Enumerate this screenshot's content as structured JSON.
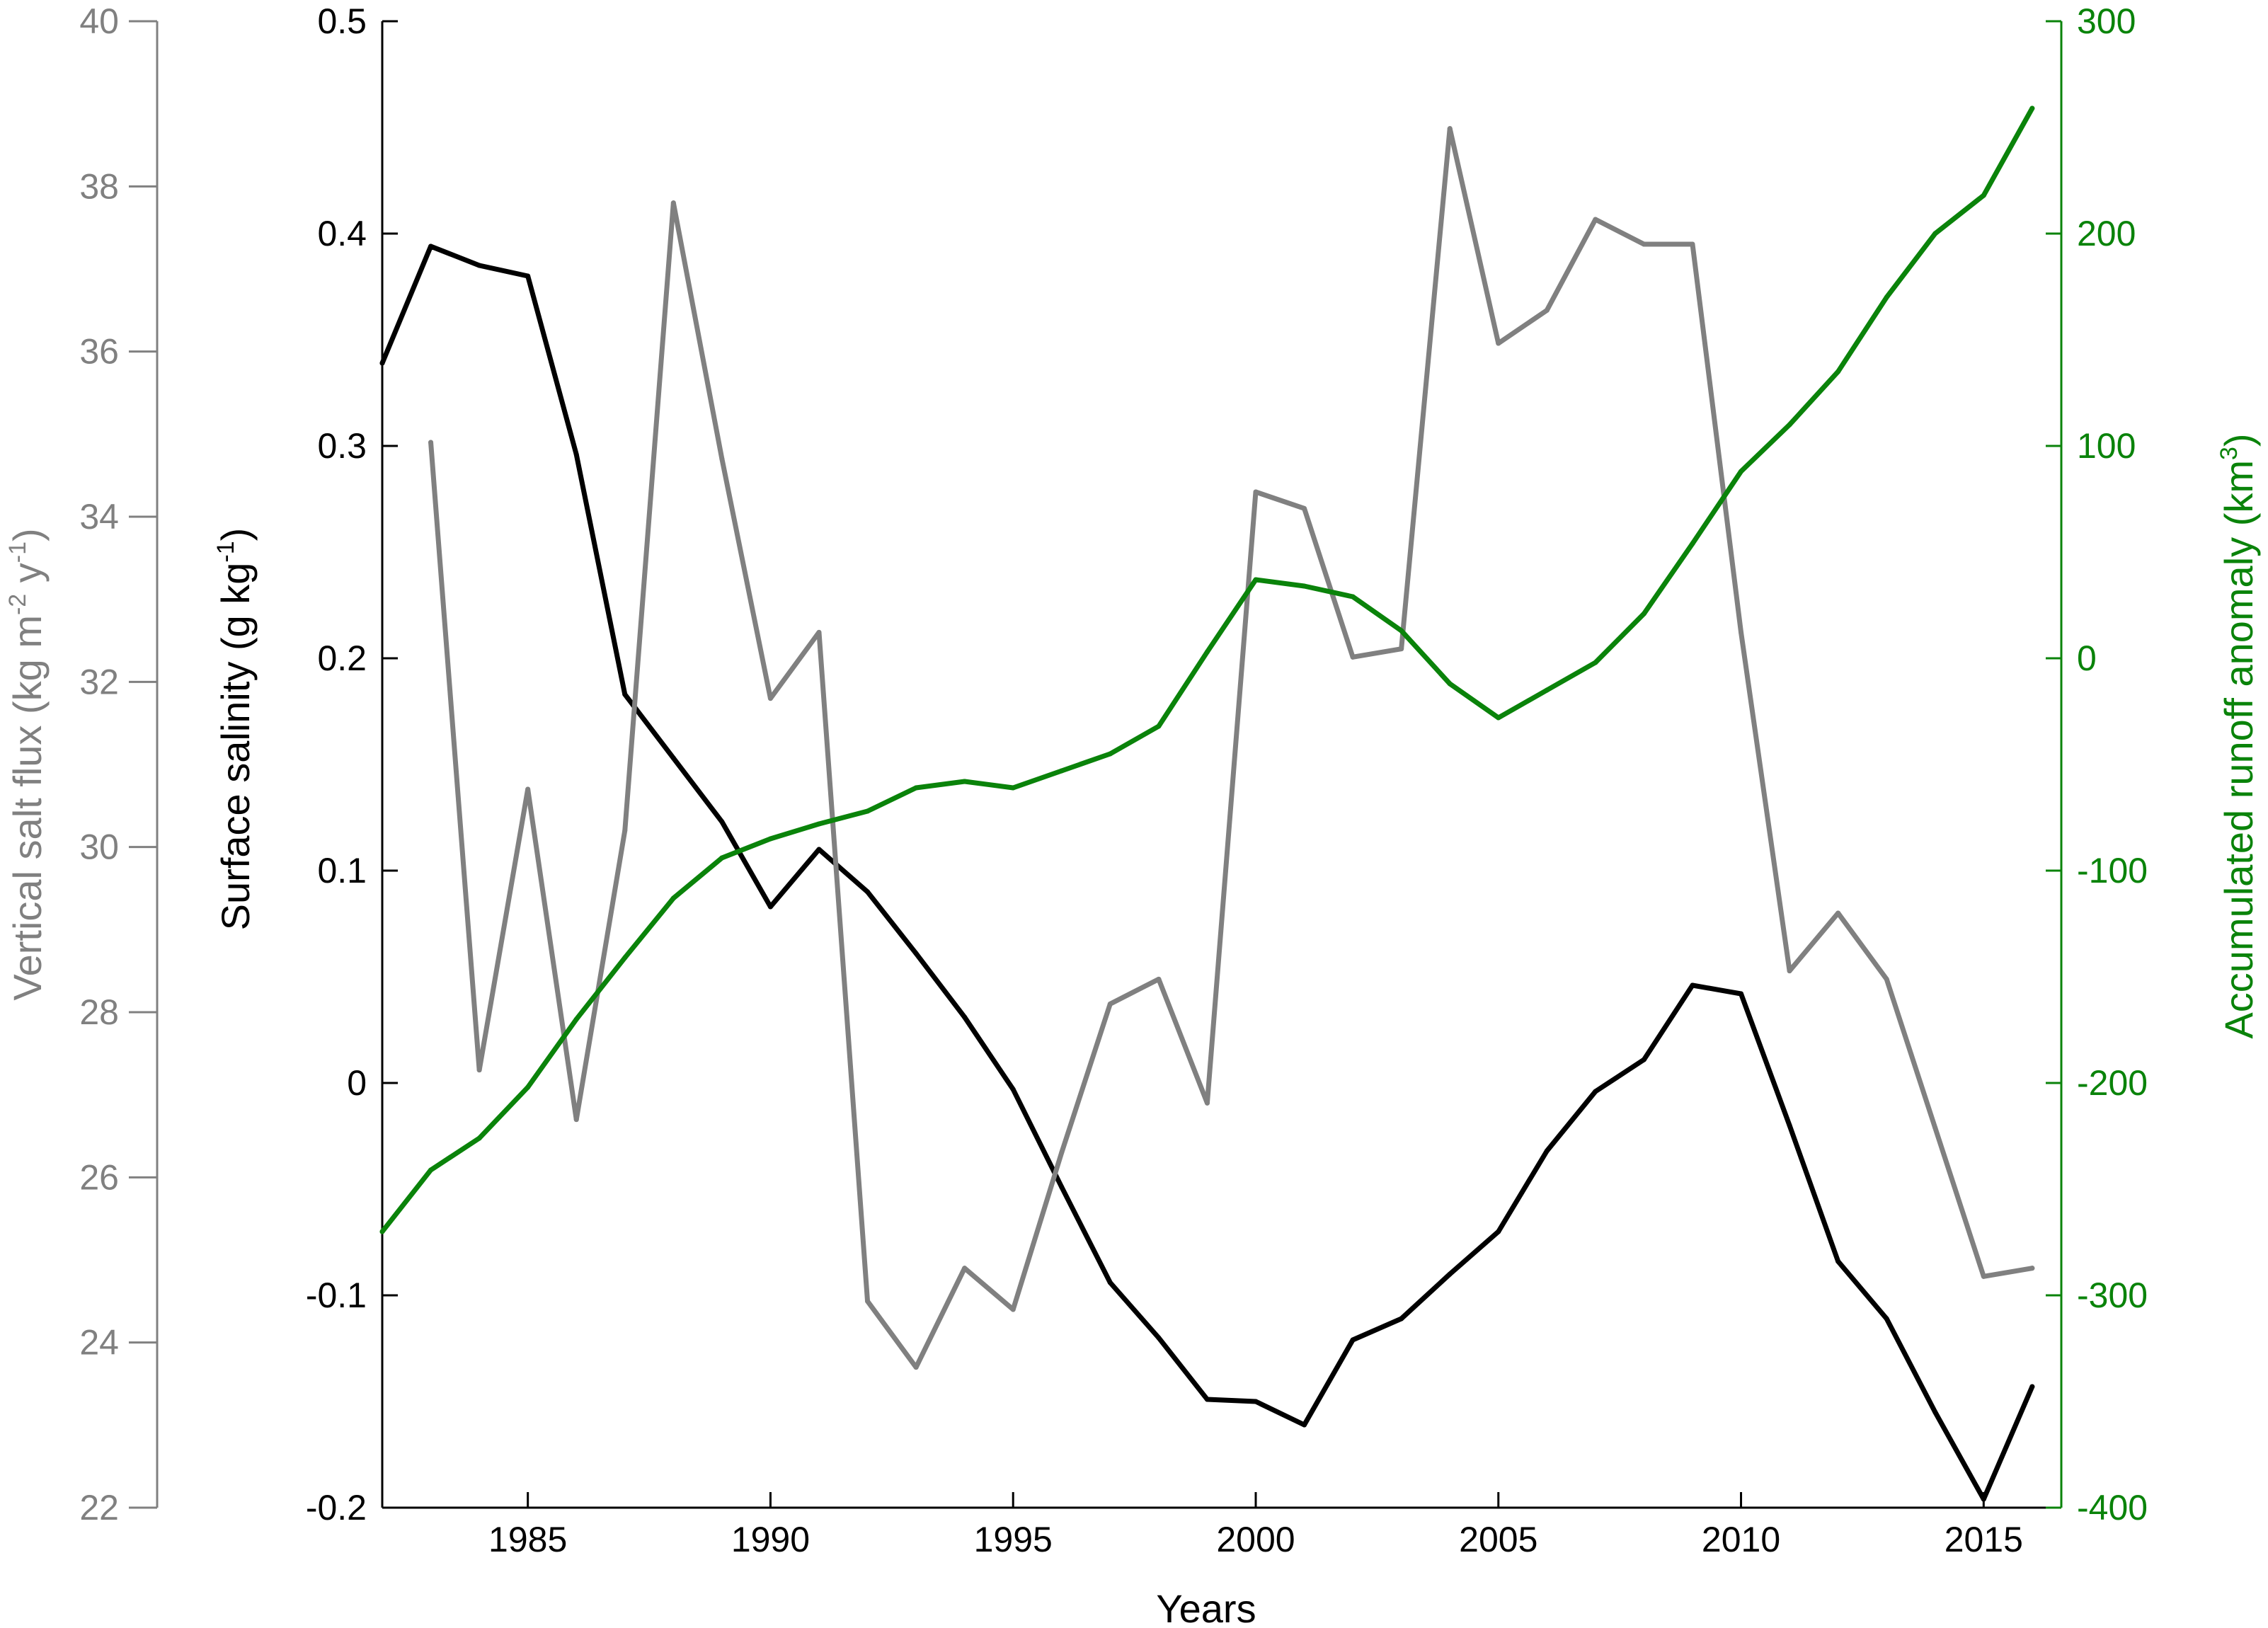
{
  "chart_data": {
    "type": "line",
    "x_axis": {
      "label": "Years",
      "range": [
        1982,
        2016.6
      ],
      "ticks": [
        1985,
        1990,
        1995,
        2000,
        2005,
        2010,
        2015
      ],
      "tick_labels": [
        "1985",
        "1990",
        "1995",
        "2000",
        "2005",
        "2010",
        "2015"
      ]
    },
    "y_axes": [
      {
        "id": "flux",
        "side": "far-left",
        "label_parts": [
          "Vertical salt flux (kg m",
          "-2",
          " y",
          "-1",
          ")"
        ],
        "range": [
          22,
          40
        ],
        "ticks": [
          22,
          24,
          26,
          28,
          30,
          32,
          34,
          36,
          38,
          40
        ],
        "tick_labels": [
          "22",
          "24",
          "26",
          "28",
          "30",
          "32",
          "34",
          "36",
          "38",
          "40"
        ],
        "color": "#808080"
      },
      {
        "id": "salinity",
        "side": "left",
        "label_parts": [
          "Surface salinity (g kg",
          "-1",
          ")"
        ],
        "range": [
          -0.2,
          0.5
        ],
        "ticks": [
          -0.2,
          -0.1,
          0,
          0.1,
          0.2,
          0.3,
          0.4,
          0.5
        ],
        "tick_labels": [
          "-0.2",
          "-0.1",
          "0",
          "0.1",
          "0.2",
          "0.3",
          "0.4",
          "0.5"
        ],
        "color": "#000000"
      },
      {
        "id": "runoff",
        "side": "right",
        "label_parts": [
          "Accumulated runoff anomaly (km",
          "3",
          ")"
        ],
        "range": [
          -400,
          300
        ],
        "ticks": [
          -400,
          -300,
          -200,
          -100,
          0,
          100,
          200,
          300
        ],
        "tick_labels": [
          "-400",
          "-300",
          "-200",
          "-100",
          "0",
          "100",
          "200",
          "300"
        ],
        "color": "#0a830a"
      }
    ],
    "series": [
      {
        "axis": "salinity",
        "color": "#000000",
        "points": [
          [
            1982,
            0.339
          ],
          [
            1983,
            0.394
          ],
          [
            1984,
            0.385
          ],
          [
            1985,
            0.38
          ],
          [
            1986,
            0.296
          ],
          [
            1987,
            0.183
          ],
          [
            1988,
            0.153
          ],
          [
            1989,
            0.123
          ],
          [
            1990,
            0.083
          ],
          [
            1991,
            0.11
          ],
          [
            1992,
            0.09
          ],
          [
            1993,
            0.061
          ],
          [
            1994,
            0.031
          ],
          [
            1995,
            -0.003
          ],
          [
            1996,
            -0.049
          ],
          [
            1997,
            -0.094
          ],
          [
            1998,
            -0.12
          ],
          [
            1999,
            -0.149
          ],
          [
            2000,
            -0.15
          ],
          [
            2001,
            -0.161
          ],
          [
            2002,
            -0.121
          ],
          [
            2003,
            -0.111
          ],
          [
            2004,
            -0.09
          ],
          [
            2005,
            -0.07
          ],
          [
            2006,
            -0.032
          ],
          [
            2007,
            -0.004
          ],
          [
            2008,
            0.011
          ],
          [
            2009,
            0.046
          ],
          [
            2010,
            0.042
          ],
          [
            2011,
            -0.02
          ],
          [
            2012,
            -0.084
          ],
          [
            2013,
            -0.111
          ],
          [
            2014,
            -0.155
          ],
          [
            2015,
            -0.196
          ],
          [
            2016,
            -0.143
          ]
        ]
      },
      {
        "axis": "flux",
        "color": "#808080",
        "points": [
          [
            1983,
            34.9
          ],
          [
            1984,
            27.3
          ],
          [
            1985,
            30.7
          ],
          [
            1986,
            26.7
          ],
          [
            1987,
            30.2
          ],
          [
            1988,
            37.8
          ],
          [
            1989,
            34.7
          ],
          [
            1990,
            31.8
          ],
          [
            1991,
            32.6
          ],
          [
            1992,
            24.5
          ],
          [
            1993,
            23.7
          ],
          [
            1994,
            24.9
          ],
          [
            1995,
            24.4
          ],
          [
            1996,
            26.3
          ],
          [
            1997,
            28.1
          ],
          [
            1998,
            28.4
          ],
          [
            1999,
            26.9
          ],
          [
            2000,
            34.3
          ],
          [
            2001,
            34.1
          ],
          [
            2002,
            32.3
          ],
          [
            2003,
            32.4
          ],
          [
            2004,
            38.7
          ],
          [
            2005,
            36.1
          ],
          [
            2006,
            36.5
          ],
          [
            2007,
            37.6
          ],
          [
            2008,
            37.3
          ],
          [
            2009,
            37.3
          ],
          [
            2010,
            32.6
          ],
          [
            2011,
            28.5
          ],
          [
            2012,
            29.2
          ],
          [
            2013,
            28.4
          ],
          [
            2014,
            26.6
          ],
          [
            2015,
            24.8
          ],
          [
            2016,
            24.9
          ]
        ]
      },
      {
        "axis": "runoff",
        "color": "#0a830a",
        "points": [
          [
            1982,
            -270
          ],
          [
            1983,
            -241
          ],
          [
            1984,
            -226
          ],
          [
            1985,
            -202
          ],
          [
            1986,
            -170
          ],
          [
            1987,
            -141
          ],
          [
            1988,
            -113
          ],
          [
            1989,
            -94
          ],
          [
            1990,
            -85
          ],
          [
            1991,
            -78
          ],
          [
            1992,
            -72
          ],
          [
            1993,
            -61
          ],
          [
            1994,
            -58
          ],
          [
            1995,
            -61
          ],
          [
            1996,
            -53
          ],
          [
            1997,
            -45
          ],
          [
            1998,
            -32
          ],
          [
            1999,
            3
          ],
          [
            2000,
            37
          ],
          [
            2001,
            34
          ],
          [
            2002,
            29
          ],
          [
            2003,
            13
          ],
          [
            2004,
            -12
          ],
          [
            2005,
            -28
          ],
          [
            2006,
            -15
          ],
          [
            2007,
            -2
          ],
          [
            2008,
            21
          ],
          [
            2009,
            54
          ],
          [
            2010,
            88
          ],
          [
            2011,
            110
          ],
          [
            2012,
            135
          ],
          [
            2013,
            170
          ],
          [
            2014,
            200
          ],
          [
            2015,
            218
          ],
          [
            2016,
            259
          ]
        ]
      }
    ]
  }
}
